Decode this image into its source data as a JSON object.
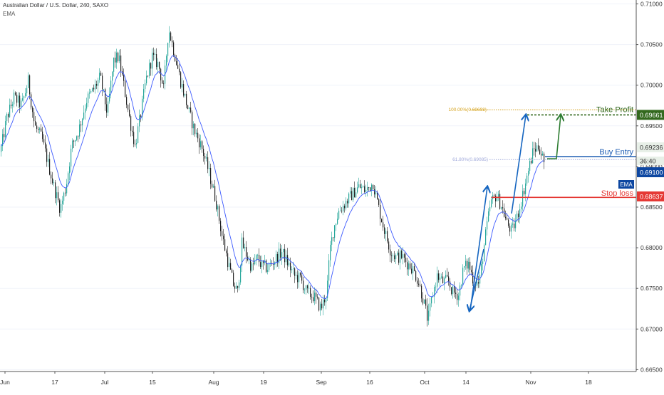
{
  "header": {
    "title": "Australian Dollar / U.S. Dollar, 240, SAXO",
    "indicator": "EMA"
  },
  "colors": {
    "up": "#26a69a",
    "down": "#222222",
    "ema": "#3d5afe",
    "take_profit": "#33691e",
    "buy_entry": "#1f5eb4",
    "stop_loss": "#e53935",
    "current_price_bg": "#0d47a1",
    "fib_100": "#d4a017",
    "fib_618": "#9fa8da",
    "green_arrow": "#2e7d32",
    "blue_arrow": "#1565c0"
  },
  "annotations": {
    "take_profit_label": "Take Profit",
    "buy_entry_label": "Buy Entry",
    "stop_loss_label": "Stop loss",
    "ema_badge": "EMA",
    "fib_100_label": "100.00%(0.69698)",
    "fib_618_label": "61.80%(0.69085)",
    "countdown": "36:40"
  },
  "chart_data": {
    "type": "candlestick",
    "symbol": "Australian Dollar / U.S. Dollar",
    "timeframe": "240",
    "source": "SAXO",
    "indicator": "EMA",
    "x_tick_labels": [
      "Jun",
      "17",
      "Jul",
      "15",
      "Aug",
      "19",
      "Sep",
      "16",
      "Oct",
      "14",
      "Nov",
      "18"
    ],
    "y_tick_labels": [
      "0.71000",
      "0.70500",
      "0.70000",
      "0.69500",
      "0.69000",
      "0.68500",
      "0.68000",
      "0.67500",
      "0.67000",
      "0.66500"
    ],
    "ylim": [
      0.665,
      0.71
    ],
    "levels": {
      "take_profit": 0.69661,
      "buy_entry": 0.69236,
      "current_price": 0.691,
      "stop_loss": 0.68637,
      "fib_100": 0.69698,
      "fib_618": 0.69085
    },
    "price_labels": [
      "0.69661",
      "0.69236",
      "0.69100",
      "0.68637"
    ],
    "close_path": [
      [
        0,
        0.6918
      ],
      [
        9,
        0.696
      ],
      [
        19,
        0.6985
      ],
      [
        30,
        0.6975
      ],
      [
        39,
        0.7005
      ],
      [
        48,
        0.695
      ],
      [
        58,
        0.6935
      ],
      [
        68,
        0.69
      ],
      [
        76,
        0.6872
      ],
      [
        84,
        0.6848
      ],
      [
        92,
        0.6875
      ],
      [
        100,
        0.6925
      ],
      [
        110,
        0.6945
      ],
      [
        121,
        0.6982
      ],
      [
        131,
        0.6995
      ],
      [
        140,
        0.701
      ],
      [
        150,
        0.6965
      ],
      [
        159,
        0.703
      ],
      [
        166,
        0.7035
      ],
      [
        174,
        0.6995
      ],
      [
        181,
        0.696
      ],
      [
        189,
        0.6925
      ],
      [
        197,
        0.6965
      ],
      [
        204,
        0.7005
      ],
      [
        213,
        0.7035
      ],
      [
        222,
        0.7025
      ],
      [
        229,
        0.6995
      ],
      [
        236,
        0.707
      ],
      [
        244,
        0.704
      ],
      [
        253,
        0.7005
      ],
      [
        262,
        0.6975
      ],
      [
        272,
        0.6945
      ],
      [
        282,
        0.6925
      ],
      [
        292,
        0.6895
      ],
      [
        302,
        0.686
      ],
      [
        311,
        0.6815
      ],
      [
        320,
        0.678
      ],
      [
        327,
        0.6755
      ],
      [
        333,
        0.6745
      ],
      [
        339,
        0.6805
      ],
      [
        346,
        0.679
      ],
      [
        353,
        0.6775
      ],
      [
        360,
        0.6788
      ],
      [
        367,
        0.6778
      ],
      [
        375,
        0.6775
      ],
      [
        385,
        0.6785
      ],
      [
        395,
        0.6795
      ],
      [
        404,
        0.678
      ],
      [
        413,
        0.6765
      ],
      [
        421,
        0.6762
      ],
      [
        430,
        0.6745
      ],
      [
        440,
        0.674
      ],
      [
        450,
        0.6725
      ],
      [
        458,
        0.6745
      ],
      [
        463,
        0.68
      ],
      [
        468,
        0.6825
      ],
      [
        475,
        0.6845
      ],
      [
        484,
        0.6855
      ],
      [
        493,
        0.6865
      ],
      [
        503,
        0.6875
      ],
      [
        513,
        0.687
      ],
      [
        523,
        0.688
      ],
      [
        532,
        0.6845
      ],
      [
        541,
        0.6815
      ],
      [
        548,
        0.6795
      ],
      [
        556,
        0.6788
      ],
      [
        563,
        0.679
      ],
      [
        570,
        0.6782
      ],
      [
        578,
        0.6775
      ],
      [
        586,
        0.676
      ],
      [
        594,
        0.6735
      ],
      [
        600,
        0.671
      ],
      [
        606,
        0.674
      ],
      [
        613,
        0.6765
      ],
      [
        621,
        0.6758
      ],
      [
        628,
        0.676
      ],
      [
        635,
        0.6745
      ],
      [
        643,
        0.6742
      ],
      [
        650,
        0.6775
      ],
      [
        657,
        0.678
      ],
      [
        664,
        0.676
      ],
      [
        672,
        0.6755
      ],
      [
        680,
        0.681
      ],
      [
        688,
        0.6855
      ],
      [
        696,
        0.6865
      ],
      [
        704,
        0.685
      ],
      [
        711,
        0.683
      ],
      [
        718,
        0.682
      ],
      [
        726,
        0.684
      ],
      [
        733,
        0.6865
      ],
      [
        741,
        0.6895
      ],
      [
        748,
        0.692
      ],
      [
        756,
        0.6925
      ],
      [
        763,
        0.6905
      ]
    ]
  }
}
